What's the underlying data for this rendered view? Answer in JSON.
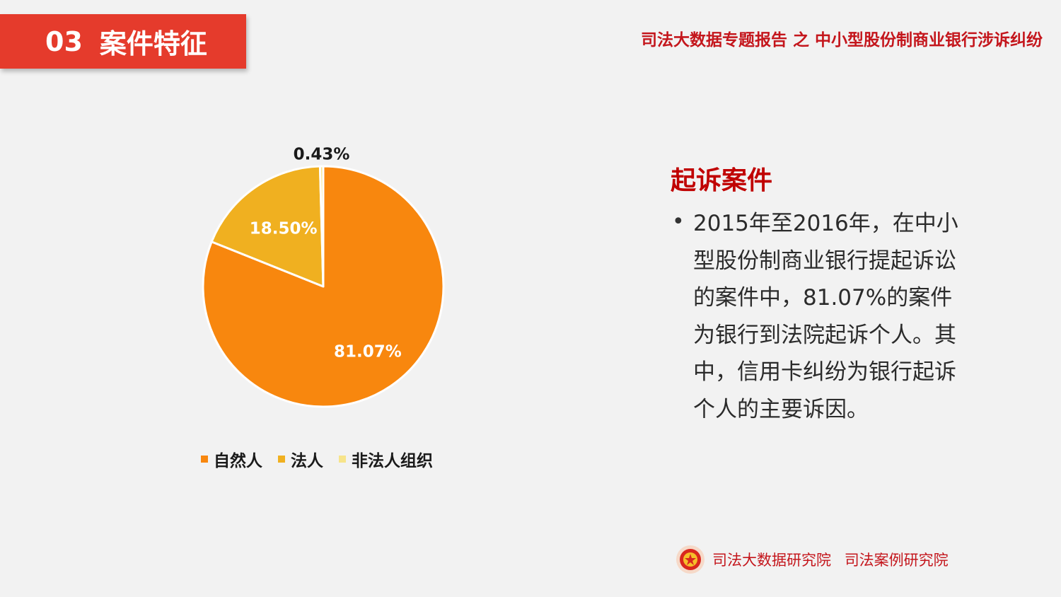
{
  "header": {
    "section_number": "03",
    "section_title": "案件特征",
    "report_title": "司法大数据专题报告 之 中小型股份制商业银行涉诉纠纷"
  },
  "chart_data": {
    "type": "pie",
    "start_angle_deg": 0,
    "direction": "clockwise",
    "slices": [
      {
        "label": "自然人",
        "value": 81.07,
        "display": "81.07%",
        "color": "#f8870e"
      },
      {
        "label": "法人",
        "value": 18.5,
        "display": "18.50%",
        "color": "#f0b020"
      },
      {
        "label": "非法人组织",
        "value": 0.43,
        "display": "0.43%",
        "color": "#f7e48a"
      }
    ],
    "legend_position": "bottom"
  },
  "text_panel": {
    "heading": "起诉案件",
    "bullet": "2015年至2016年，在中小型股份制商业银行提起诉讼的案件中，81.07%的案件为银行到法院起诉个人。其中，信用卡纠纷为银行起诉个人的主要诉因。"
  },
  "footer": {
    "org1": "司法大数据研究院",
    "org2": "司法案例研究院",
    "emblem_icon": "court-emblem-icon"
  }
}
